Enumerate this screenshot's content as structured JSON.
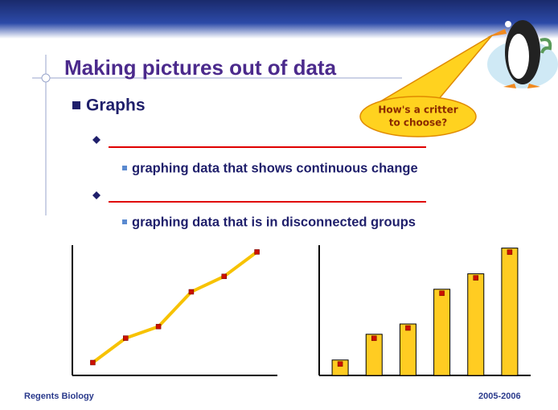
{
  "slide": {
    "title": "Making pictures out of data",
    "bullet": "Graphs",
    "items": [
      "graphing data that shows continuous change",
      "graphing data that is in disconnected groups"
    ],
    "callout": [
      "How's a critter",
      "to choose?"
    ],
    "footer_left": "Regents Biology",
    "footer_right": "2005-2006"
  },
  "chart_data": [
    {
      "type": "line",
      "categories": [
        null,
        null,
        null,
        null,
        null,
        null
      ],
      "values": [
        10,
        29,
        38,
        65,
        77,
        96
      ],
      "ylim": [
        0,
        100
      ],
      "color": "#f7c200",
      "marker_color": "#cc1100"
    },
    {
      "type": "bar",
      "categories": [
        null,
        null,
        null,
        null,
        null,
        null
      ],
      "values": [
        12,
        32,
        40,
        67,
        79,
        99
      ],
      "ylim": [
        0,
        100
      ],
      "color": "#ffcc22",
      "marker_color": "#cc1100"
    }
  ]
}
